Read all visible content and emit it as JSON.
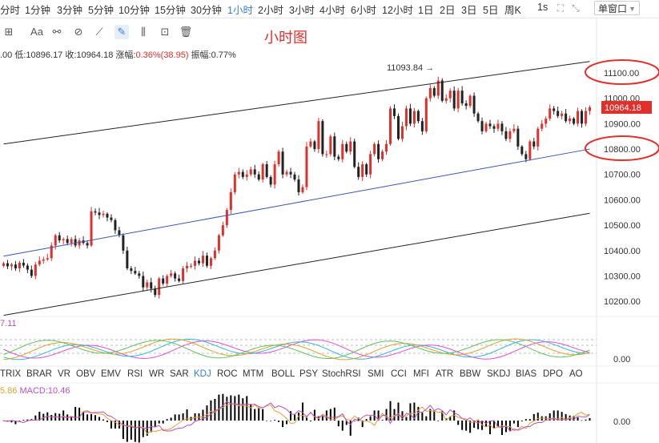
{
  "timeframes": [
    "分时",
    "1分钟",
    "3分钟",
    "5分钟",
    "10分钟",
    "15分钟",
    "30分钟",
    "1小时",
    "2小时",
    "3小时",
    "4小时",
    "6小时",
    "12小时",
    "1日",
    "2日",
    "3日",
    "5日",
    "周K"
  ],
  "active_timeframe": "1小时",
  "interval_label": "1s",
  "window_select": "单窗口",
  "chart_title": "小时图",
  "ohlc": {
    "open": ".00",
    "low_label": "低:",
    "low": "10896.17",
    "close_label": "收:",
    "close": "10964.18",
    "change_label": "涨幅:",
    "change": "0.36%(38.95)",
    "amp_label": "振幅:",
    "amp": "0.77%"
  },
  "indicators": [
    "TRIX",
    "BRAR",
    "VR",
    "OBV",
    "EMV",
    "RSI",
    "WR",
    "SAR",
    "KDJ",
    "ROC",
    "MTM",
    "BOLL",
    "PSY",
    "StochRSI",
    "SMI",
    "CCI",
    "MFI",
    "ATR",
    "BBW",
    "SKDJ",
    "BIAS",
    "DPO",
    "AO"
  ],
  "active_indicator": "KDJ",
  "kdj_label": "7.11",
  "macd": {
    "value_left": "5.86",
    "label": "MACD:10.46"
  },
  "colors": {
    "up": "#e0302c",
    "down": "#222222",
    "accent": "#3a7bd5",
    "ellipse": "#e0302c"
  },
  "chart_data": {
    "type": "candlestick",
    "title": "小时图",
    "ylim": [
      10150,
      11160
    ],
    "yticks": [
      10200,
      10300,
      10400,
      10500,
      10600,
      10700,
      10800,
      10900,
      11000,
      11100
    ],
    "tick_labels": [
      "10200.00",
      "10300.00",
      "10400.00",
      "10500.00",
      "10600.00",
      "10700.00",
      "10800.00",
      "10900.00",
      "11000.00",
      "11100.00"
    ],
    "last_price": "10964.18",
    "annotation": "11093.84 →",
    "high_value": 11093.84,
    "highlighted_levels": [
      11100,
      10800
    ],
    "candles_close": [
      10350,
      10338,
      10345,
      10330,
      10352,
      10341,
      10325,
      10300,
      10345,
      10360,
      10365,
      10370,
      10420,
      10460,
      10440,
      10445,
      10430,
      10445,
      10420,
      10440,
      10430,
      10420,
      10555,
      10550,
      10540,
      10545,
      10530,
      10520,
      10480,
      10460,
      10400,
      10330,
      10320,
      10310,
      10300,
      10255,
      10275,
      10250,
      10225,
      10290,
      10270,
      10300,
      10310,
      10290,
      10280,
      10330,
      10340,
      10340,
      10360,
      10350,
      10380,
      10340,
      10370,
      10400,
      10460,
      10500,
      10560,
      10630,
      10700,
      10710,
      10690,
      10700,
      10720,
      10700,
      10680,
      10740,
      10690,
      10660,
      10740,
      10790,
      10700,
      10710,
      10700,
      10680,
      10630,
      10650,
      10810,
      10830,
      10800,
      10910,
      10780,
      10780,
      10850,
      10770,
      10760,
      10820,
      10790,
      10830,
      10730,
      10690,
      10740,
      10700,
      10780,
      10820,
      10760,
      10790,
      10820,
      10960,
      10930,
      10840,
      10890,
      10960,
      10900,
      10950,
      10910,
      10870,
      11000,
      11040,
      11010,
      11070,
      10990,
      11000,
      11030,
      10960,
      11030,
      10980,
      10970,
      11010,
      10940,
      10910,
      10870,
      10900,
      10890,
      10880,
      10900,
      10870,
      10840,
      10870,
      10880,
      10810,
      10780,
      10760,
      10830,
      10810,
      10880,
      10900,
      10920,
      10960,
      10950,
      10930,
      10940,
      10910,
      10920,
      10900,
      10950,
      10900,
      10950,
      10964.18
    ],
    "trend_lines": [
      {
        "name": "upper-channel",
        "color": "#222222",
        "from": [
          0,
          10820
        ],
        "to": [
          147,
          11145
        ]
      },
      {
        "name": "mid-support",
        "color": "#3a55b0",
        "from": [
          0,
          10378
        ],
        "to": [
          147,
          10800
        ]
      },
      {
        "name": "lower-channel",
        "color": "#222222",
        "from": [
          0,
          10145
        ],
        "to": [
          147,
          10547
        ]
      }
    ]
  }
}
